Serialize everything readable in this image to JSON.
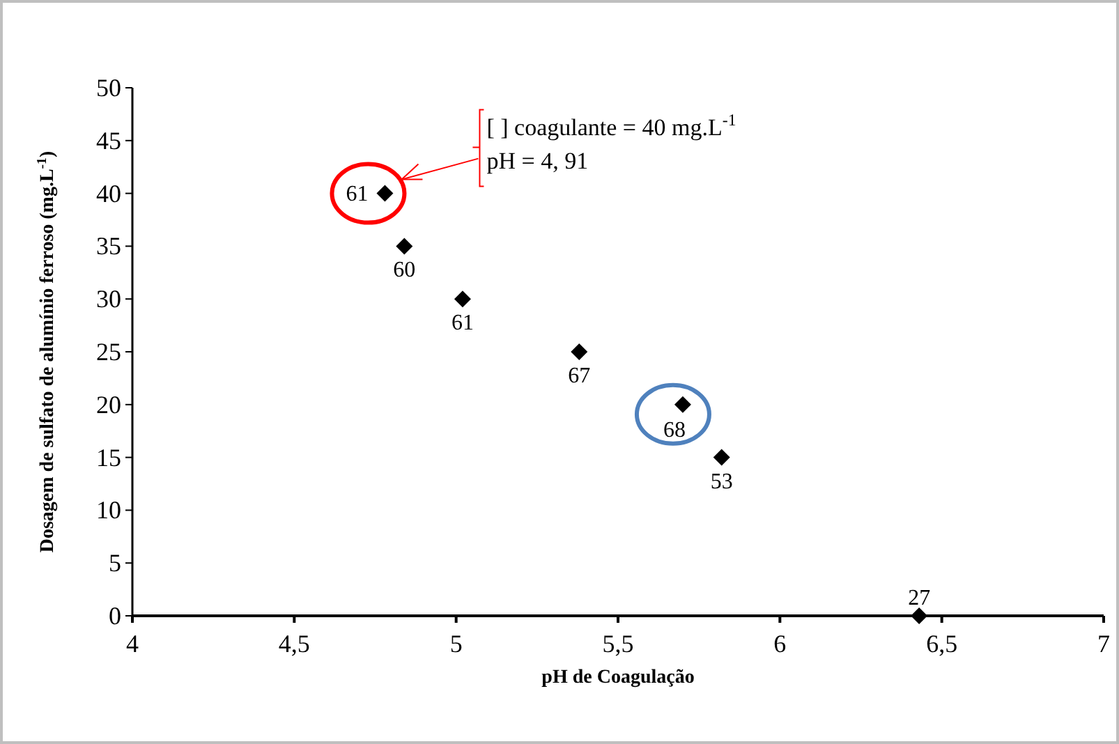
{
  "chart_data": {
    "type": "scatter",
    "xlabel": "pH de Coagulação",
    "ylabel": "Dosagem de sulfato de alumínio ferroso (mg.L$^{-1}$)",
    "x": [
      4.78,
      4.84,
      5.02,
      5.38,
      5.7,
      5.82,
      6.43
    ],
    "values": [
      40,
      35,
      30,
      25,
      20,
      15,
      0
    ],
    "color": "#000000",
    "marker": "diamond",
    "grid": false,
    "xlim": [
      4,
      7
    ],
    "xticks": [
      4,
      {
        "value": 4.5,
        "label": "4,5"
      },
      5,
      {
        "value": 5.5,
        "label": "5,5"
      },
      6,
      {
        "value": 6.5,
        "label": "6,5"
      },
      7
    ],
    "ylim": [
      0,
      50
    ],
    "yticks": [
      0,
      5,
      10,
      15,
      20,
      25,
      30,
      35,
      40,
      45,
      50
    ],
    "annotations": [
      "[ ] coagulante = 40 mg.L$^{-1}$",
      "pH = 4, 91",
      {
        "text": "61",
        "x": 4.78,
        "y": 40
      },
      {
        "text": "60",
        "x": 4.84,
        "y": 35
      },
      {
        "text": "61",
        "x": 5.02,
        "y": 30
      },
      {
        "text": "67",
        "x": 5.38,
        "y": 25
      },
      {
        "text": "68",
        "x": 5.7,
        "y": 20
      },
      {
        "text": "53",
        "x": 5.82,
        "y": 15
      },
      {
        "text": "27",
        "x": 6.43,
        "y": 0
      }
    ]
  }
}
